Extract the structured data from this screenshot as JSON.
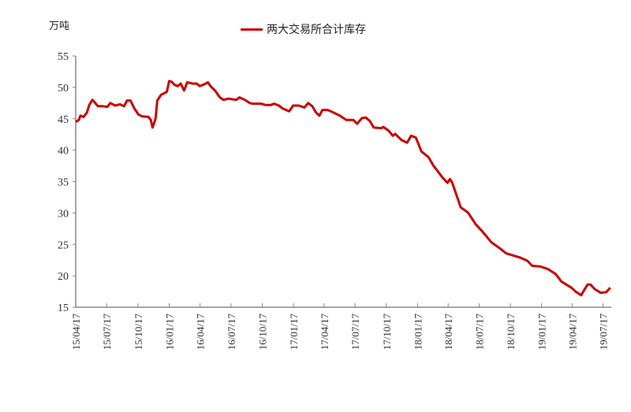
{
  "chart_data": {
    "type": "line",
    "title": "",
    "ylabel": "万吨",
    "xlabel": "",
    "ylim": [
      15,
      55
    ],
    "yticks": [
      15,
      20,
      25,
      30,
      35,
      40,
      45,
      50,
      55
    ],
    "xticks": [
      "15/04/17",
      "15/07/17",
      "15/10/17",
      "16/01/17",
      "16/04/17",
      "16/07/17",
      "16/10/17",
      "17/01/17",
      "17/04/17",
      "17/07/17",
      "17/10/17",
      "18/01/17",
      "18/04/17",
      "18/07/17",
      "18/10/17",
      "19/01/17",
      "19/04/17",
      "19/07/17"
    ],
    "xlim": [
      "2015-04-17",
      "2019-08-10"
    ],
    "grid": false,
    "legend_position": "top-center",
    "series": [
      {
        "name": "两大交易所合计库存",
        "color": "#cc0000",
        "points": [
          [
            "2015-04-17",
            44.5
          ],
          [
            "2015-04-26",
            44.8
          ],
          [
            "2015-05-01",
            45.5
          ],
          [
            "2015-05-10",
            45.3
          ],
          [
            "2015-05-20",
            46.0
          ],
          [
            "2015-05-27",
            47.2
          ],
          [
            "2015-06-05",
            48.0
          ],
          [
            "2015-06-12",
            47.6
          ],
          [
            "2015-06-21",
            47.0
          ],
          [
            "2015-07-05",
            47.0
          ],
          [
            "2015-07-19",
            46.9
          ],
          [
            "2015-07-28",
            47.5
          ],
          [
            "2015-08-11",
            47.1
          ],
          [
            "2015-08-25",
            47.3
          ],
          [
            "2015-09-06",
            47.0
          ],
          [
            "2015-09-15",
            47.9
          ],
          [
            "2015-09-25",
            47.9
          ],
          [
            "2015-10-06",
            46.7
          ],
          [
            "2015-10-18",
            45.7
          ],
          [
            "2015-10-29",
            45.4
          ],
          [
            "2015-11-17",
            45.3
          ],
          [
            "2015-11-24",
            44.8
          ],
          [
            "2015-11-29",
            43.6
          ],
          [
            "2015-12-08",
            45.0
          ],
          [
            "2015-12-13",
            47.9
          ],
          [
            "2015-12-24",
            48.8
          ],
          [
            "2015-12-31",
            49.0
          ],
          [
            "2016-01-10",
            49.3
          ],
          [
            "2016-01-17",
            51.0
          ],
          [
            "2016-01-24",
            50.9
          ],
          [
            "2016-02-02",
            50.4
          ],
          [
            "2016-02-11",
            50.2
          ],
          [
            "2016-02-20",
            50.6
          ],
          [
            "2016-03-01",
            49.5
          ],
          [
            "2016-03-10",
            50.8
          ],
          [
            "2016-03-26",
            50.6
          ],
          [
            "2016-04-07",
            50.6
          ],
          [
            "2016-04-16",
            50.2
          ],
          [
            "2016-04-30",
            50.5
          ],
          [
            "2016-05-10",
            50.8
          ],
          [
            "2016-05-19",
            50.1
          ],
          [
            "2016-05-31",
            49.5
          ],
          [
            "2016-06-14",
            48.4
          ],
          [
            "2016-06-25",
            48.0
          ],
          [
            "2016-07-09",
            48.2
          ],
          [
            "2016-07-21",
            48.1
          ],
          [
            "2016-08-01",
            48.0
          ],
          [
            "2016-08-11",
            48.4
          ],
          [
            "2016-08-27",
            48.0
          ],
          [
            "2016-09-10",
            47.5
          ],
          [
            "2016-09-19",
            47.4
          ],
          [
            "2016-10-13",
            47.4
          ],
          [
            "2016-10-26",
            47.2
          ],
          [
            "2016-11-12",
            47.2
          ],
          [
            "2016-11-21",
            47.4
          ],
          [
            "2016-12-05",
            47.1
          ],
          [
            "2016-12-17",
            46.6
          ],
          [
            "2017-01-04",
            46.2
          ],
          [
            "2017-01-16",
            47.1
          ],
          [
            "2017-02-01",
            47.1
          ],
          [
            "2017-02-18",
            46.8
          ],
          [
            "2017-03-01",
            47.5
          ],
          [
            "2017-03-13",
            47.0
          ],
          [
            "2017-03-24",
            46.0
          ],
          [
            "2017-04-03",
            45.5
          ],
          [
            "2017-04-12",
            46.4
          ],
          [
            "2017-04-28",
            46.4
          ],
          [
            "2017-05-10",
            46.1
          ],
          [
            "2017-06-02",
            45.5
          ],
          [
            "2017-06-21",
            44.8
          ],
          [
            "2017-07-12",
            44.8
          ],
          [
            "2017-07-23",
            44.2
          ],
          [
            "2017-08-06",
            45.1
          ],
          [
            "2017-08-18",
            45.2
          ],
          [
            "2017-08-30",
            44.6
          ],
          [
            "2017-09-10",
            43.6
          ],
          [
            "2017-10-03",
            43.5
          ],
          [
            "2017-10-08",
            43.7
          ],
          [
            "2017-10-24",
            43.1
          ],
          [
            "2017-11-05",
            42.3
          ],
          [
            "2017-11-12",
            42.6
          ],
          [
            "2017-12-01",
            41.6
          ],
          [
            "2017-12-17",
            41.2
          ],
          [
            "2017-12-29",
            42.3
          ],
          [
            "2018-01-12",
            42.0
          ],
          [
            "2018-01-28",
            39.8
          ],
          [
            "2018-02-18",
            38.9
          ],
          [
            "2018-03-04",
            37.6
          ],
          [
            "2018-04-01",
            35.6
          ],
          [
            "2018-04-15",
            34.8
          ],
          [
            "2018-04-22",
            35.4
          ],
          [
            "2018-04-29",
            34.8
          ],
          [
            "2018-05-24",
            30.9
          ],
          [
            "2018-06-14",
            30.1
          ],
          [
            "2018-07-07",
            28.2
          ],
          [
            "2018-07-26",
            27.1
          ],
          [
            "2018-08-23",
            25.3
          ],
          [
            "2018-09-18",
            24.3
          ],
          [
            "2018-10-04",
            23.6
          ],
          [
            "2018-10-27",
            23.2
          ],
          [
            "2018-11-15",
            22.9
          ],
          [
            "2018-12-06",
            22.4
          ],
          [
            "2018-12-20",
            21.6
          ],
          [
            "2019-01-12",
            21.5
          ],
          [
            "2019-02-04",
            21.1
          ],
          [
            "2019-02-27",
            20.3
          ],
          [
            "2019-03-16",
            19.1
          ],
          [
            "2019-04-15",
            18.1
          ],
          [
            "2019-04-27",
            17.5
          ],
          [
            "2019-05-13",
            16.9
          ],
          [
            "2019-06-01",
            18.6
          ],
          [
            "2019-06-10",
            18.6
          ],
          [
            "2019-06-22",
            17.9
          ],
          [
            "2019-07-10",
            17.3
          ],
          [
            "2019-07-26",
            17.4
          ],
          [
            "2019-08-07",
            18.1
          ]
        ]
      }
    ]
  }
}
